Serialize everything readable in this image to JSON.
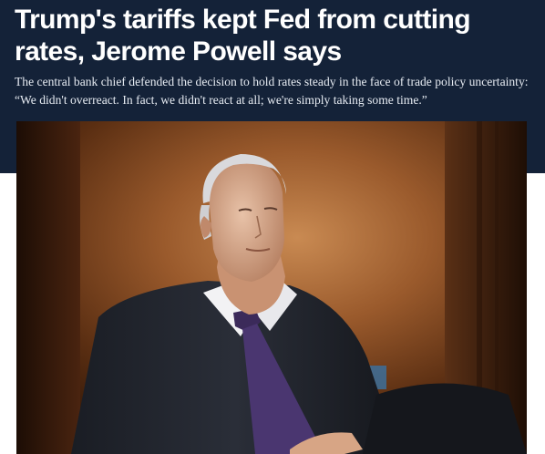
{
  "article": {
    "headline": "Trump's tariffs kept Fed from cutting rates, Jerome Powell says",
    "dek": "The central bank chief defended the decision to hold rates steady in the face of trade policy uncertainty: “We didn't overreact. In fact, we didn't react at all; we're simply taking some time.”"
  },
  "colors": {
    "header_background": "#142238",
    "page_background": "#ffffff"
  }
}
